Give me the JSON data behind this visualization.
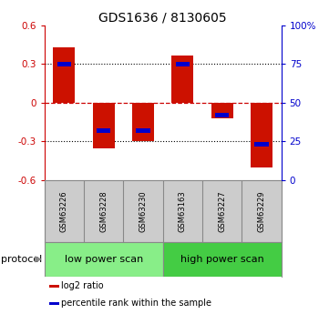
{
  "title": "GDS1636 / 8130605",
  "samples": [
    "GSM63226",
    "GSM63228",
    "GSM63230",
    "GSM63163",
    "GSM63227",
    "GSM63229"
  ],
  "log2_ratio": [
    0.43,
    -0.355,
    -0.3,
    0.365,
    -0.12,
    -0.5
  ],
  "percentile_rank_y": [
    0.3,
    -0.22,
    -0.22,
    0.3,
    -0.1,
    -0.32
  ],
  "bar_width": 0.55,
  "pct_bar_width": 0.35,
  "pct_bar_height": 0.035,
  "ylim": [
    -0.6,
    0.6
  ],
  "y2lim": [
    0,
    100
  ],
  "yticks": [
    -0.6,
    -0.3,
    0,
    0.3,
    0.6
  ],
  "y2ticks": [
    0,
    25,
    50,
    75,
    100
  ],
  "groups": [
    {
      "label": "low power scan",
      "span": [
        0,
        2
      ],
      "color": "#88ee88"
    },
    {
      "label": "high power scan",
      "span": [
        3,
        5
      ],
      "color": "#44cc44"
    }
  ],
  "bar_color": "#cc1100",
  "pct_color": "#0000cc",
  "zero_line_color": "#cc0000",
  "grid_color": "#000000",
  "bg_color": "#ffffff",
  "sample_label_bg": "#cccccc",
  "protocol_label": "protocol",
  "legend_items": [
    {
      "label": "log2 ratio",
      "color": "#cc1100"
    },
    {
      "label": "percentile rank within the sample",
      "color": "#0000cc"
    }
  ]
}
